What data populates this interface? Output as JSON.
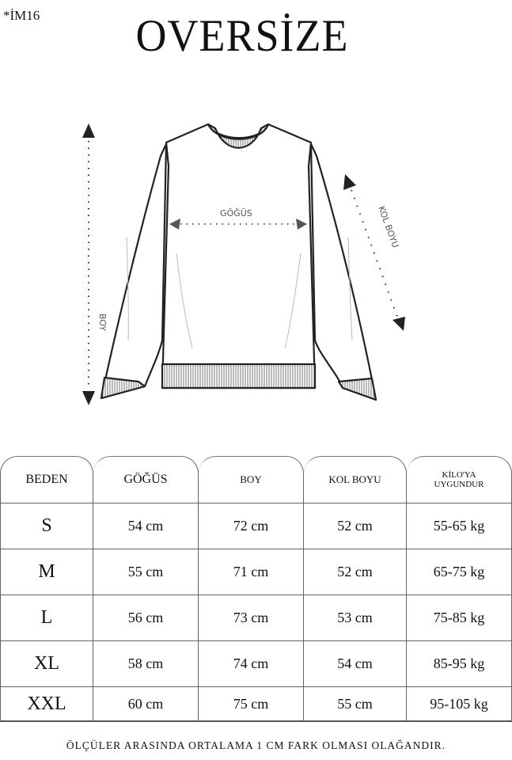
{
  "product_code": "*İM16",
  "title": "OVERSİZE",
  "diagram": {
    "chest_label": "GÖĞÜS",
    "length_label": "BOY",
    "sleeve_label": "KOL BOYU"
  },
  "table": {
    "headers": [
      "BEDEN",
      "GÖĞÜS",
      "BOY",
      "KOL BOYU",
      "KİLO'YA UYGUNDUR"
    ],
    "rows": [
      [
        "S",
        "54 cm",
        "72 cm",
        "52  cm",
        "55-65 kg"
      ],
      [
        "M",
        "55 cm",
        "71 cm",
        "52 cm",
        "65-75 kg"
      ],
      [
        "L",
        "56 cm",
        "73 cm",
        "53 cm",
        "75-85 kg"
      ],
      [
        "XL",
        "58 cm",
        "74 cm",
        "54 cm",
        "85-95 kg"
      ],
      [
        "XXL",
        "60 cm",
        "75 cm",
        "55 cm",
        "95-105 kg"
      ]
    ]
  },
  "note": "ÖLÇÜLER ARASINDA ORTALAMA 1 CM FARK OLMASI OLAĞANDIR."
}
